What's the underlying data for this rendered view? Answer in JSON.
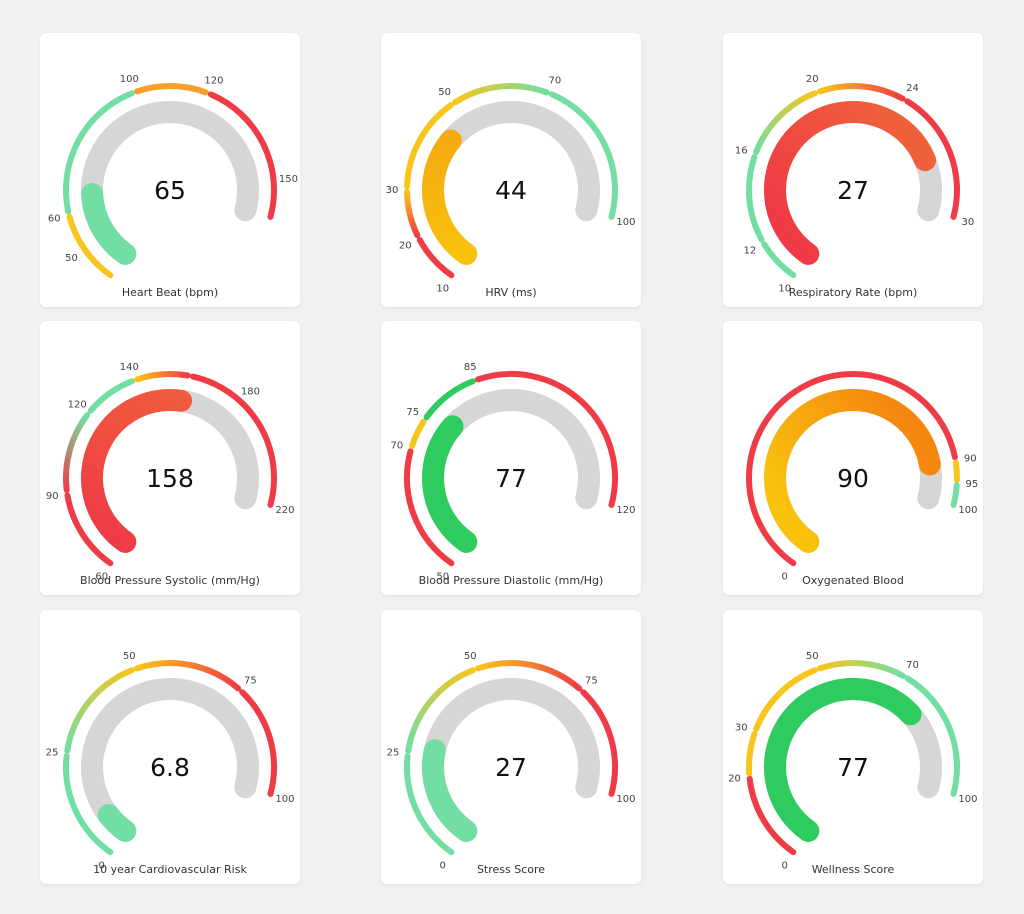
{
  "colors": {
    "green_light": "#72dea4",
    "green": "#2ecc5e",
    "yellow": "#f7c51c",
    "orange": "#f5a02a",
    "red": "#ef3b45",
    "track": "#d6d6d6"
  },
  "chart_data": [
    {
      "type": "gauge",
      "title": "Heart Beat (bpm)",
      "value": 65,
      "display": "65",
      "range": [
        40,
        160
      ],
      "fill": [
        "#72dea4",
        "#72dea4"
      ],
      "ticks": [
        50,
        60,
        100,
        120,
        150
      ],
      "bands": [
        {
          "from": 40,
          "to": 60,
          "colors": [
            "#f7c51c",
            "#f7c51c"
          ]
        },
        {
          "from": 60,
          "to": 100,
          "colors": [
            "#72dea4",
            "#72dea4"
          ]
        },
        {
          "from": 100,
          "to": 120,
          "colors": [
            "#f5a02a",
            "#f5a02a"
          ]
        },
        {
          "from": 120,
          "to": 160,
          "colors": [
            "#ef3b45",
            "#ef3b45"
          ]
        }
      ]
    },
    {
      "type": "gauge",
      "title": "HRV (ms)",
      "value": 44,
      "display": "44",
      "range": [
        10,
        100
      ],
      "fill": [
        "#f9c20d",
        "#f5ab10"
      ],
      "ticks": [
        10,
        20,
        30,
        50,
        70,
        100
      ],
      "bands": [
        {
          "from": 10,
          "to": 20,
          "colors": [
            "#ef3b45",
            "#ef3b45"
          ]
        },
        {
          "from": 20,
          "to": 30,
          "colors": [
            "#ef3b45",
            "#f7c51c"
          ]
        },
        {
          "from": 30,
          "to": 50,
          "colors": [
            "#f7c51c",
            "#f7c51c"
          ]
        },
        {
          "from": 50,
          "to": 70,
          "colors": [
            "#f7c51c",
            "#72dea4"
          ]
        },
        {
          "from": 70,
          "to": 100,
          "colors": [
            "#72dea4",
            "#72dea4"
          ]
        }
      ]
    },
    {
      "type": "gauge",
      "title": "Respiratory Rate (bpm)",
      "value": 27,
      "display": "27",
      "range": [
        10,
        30
      ],
      "fill": [
        "#ef3b45",
        "#f0603b"
      ],
      "ticks": [
        10,
        12,
        16,
        20,
        24,
        30
      ],
      "bands": [
        {
          "from": 10,
          "to": 12,
          "colors": [
            "#72dea4",
            "#72dea4"
          ]
        },
        {
          "from": 12,
          "to": 16,
          "colors": [
            "#72dea4",
            "#72dea4"
          ]
        },
        {
          "from": 16,
          "to": 20,
          "colors": [
            "#72dea4",
            "#f7c51c"
          ]
        },
        {
          "from": 20,
          "to": 24,
          "colors": [
            "#f7c51c",
            "#ef3b45"
          ]
        },
        {
          "from": 24,
          "to": 30,
          "colors": [
            "#ef3b45",
            "#ef3b45"
          ]
        }
      ]
    },
    {
      "type": "gauge",
      "title": "Blood Pressure Systolic (mm/Hg)",
      "value": 158,
      "display": "158",
      "range": [
        60,
        220
      ],
      "fill": [
        "#ef3b45",
        "#f05a3e"
      ],
      "ticks": [
        60,
        90,
        120,
        140,
        180,
        220
      ],
      "bands": [
        {
          "from": 60,
          "to": 90,
          "colors": [
            "#ef3b45",
            "#ef3b45"
          ]
        },
        {
          "from": 90,
          "to": 120,
          "colors": [
            "#ef3b45",
            "#72dea4"
          ]
        },
        {
          "from": 120,
          "to": 140,
          "colors": [
            "#72dea4",
            "#72dea4"
          ]
        },
        {
          "from": 140,
          "to": 160,
          "colors": [
            "#f7c51c",
            "#ef3b45"
          ]
        },
        {
          "from": 160,
          "to": 220,
          "colors": [
            "#ef3b45",
            "#ef3b45"
          ]
        }
      ]
    },
    {
      "type": "gauge",
      "title": "Blood Pressure Diastolic (mm/Hg)",
      "value": 77,
      "display": "77",
      "range": [
        50,
        120
      ],
      "fill": [
        "#2ecc5e",
        "#2ecc5e"
      ],
      "ticks": [
        50,
        70,
        75,
        85,
        120
      ],
      "bands": [
        {
          "from": 50,
          "to": 70,
          "colors": [
            "#ef3b45",
            "#ef3b45"
          ]
        },
        {
          "from": 70,
          "to": 75,
          "colors": [
            "#f7c51c",
            "#f7c51c"
          ]
        },
        {
          "from": 75,
          "to": 85,
          "colors": [
            "#2ecc5e",
            "#2ecc5e"
          ]
        },
        {
          "from": 85,
          "to": 120,
          "colors": [
            "#ef3b45",
            "#ef3b45"
          ]
        }
      ]
    },
    {
      "type": "gauge",
      "title": "Oxygenated Blood",
      "value": 90,
      "display": "90",
      "range": [
        0,
        100
      ],
      "fill": [
        "#f9c20d",
        "#f5870f"
      ],
      "ticks": [
        0,
        90,
        95,
        100
      ],
      "bands": [
        {
          "from": 0,
          "to": 90,
          "colors": [
            "#ef3b45",
            "#ef3b45"
          ]
        },
        {
          "from": 90,
          "to": 95,
          "colors": [
            "#f7c51c",
            "#f7c51c"
          ]
        },
        {
          "from": 95,
          "to": 100,
          "colors": [
            "#72dea4",
            "#72dea4"
          ]
        }
      ]
    },
    {
      "type": "gauge",
      "title": "10 year Cardiovascular Risk",
      "value": 6.8,
      "display": "6.8",
      "range": [
        0,
        100
      ],
      "fill": [
        "#72dea4",
        "#72dea4"
      ],
      "ticks": [
        0,
        25,
        50,
        75,
        100
      ],
      "bands": [
        {
          "from": 0,
          "to": 25,
          "colors": [
            "#72dea4",
            "#72dea4"
          ]
        },
        {
          "from": 25,
          "to": 50,
          "colors": [
            "#72dea4",
            "#f7c51c"
          ]
        },
        {
          "from": 50,
          "to": 75,
          "colors": [
            "#f7c51c",
            "#ef3b45"
          ]
        },
        {
          "from": 75,
          "to": 100,
          "colors": [
            "#ef3b45",
            "#ef3b45"
          ]
        }
      ]
    },
    {
      "type": "gauge",
      "title": "Stress Score",
      "value": 27,
      "display": "27",
      "range": [
        0,
        100
      ],
      "fill": [
        "#72dea4",
        "#72dea4"
      ],
      "ticks": [
        0,
        25,
        50,
        75,
        100
      ],
      "bands": [
        {
          "from": 0,
          "to": 25,
          "colors": [
            "#72dea4",
            "#72dea4"
          ]
        },
        {
          "from": 25,
          "to": 50,
          "colors": [
            "#72dea4",
            "#f7c51c"
          ]
        },
        {
          "from": 50,
          "to": 75,
          "colors": [
            "#f7c51c",
            "#ef3b45"
          ]
        },
        {
          "from": 75,
          "to": 100,
          "colors": [
            "#ef3b45",
            "#ef3b45"
          ]
        }
      ]
    },
    {
      "type": "gauge",
      "title": "Wellness Score",
      "value": 77,
      "display": "77",
      "range": [
        0,
        100
      ],
      "fill": [
        "#2ecc5e",
        "#2ecc5e"
      ],
      "ticks": [
        0,
        20,
        30,
        50,
        70,
        100
      ],
      "bands": [
        {
          "from": 0,
          "to": 20,
          "colors": [
            "#ef3b45",
            "#ef3b45"
          ]
        },
        {
          "from": 20,
          "to": 30,
          "colors": [
            "#f7c51c",
            "#f7c51c"
          ]
        },
        {
          "from": 30,
          "to": 50,
          "colors": [
            "#f7c51c",
            "#f7c51c"
          ]
        },
        {
          "from": 50,
          "to": 70,
          "colors": [
            "#f7c51c",
            "#72dea4"
          ]
        },
        {
          "from": 70,
          "to": 100,
          "colors": [
            "#72dea4",
            "#72dea4"
          ]
        }
      ]
    }
  ]
}
